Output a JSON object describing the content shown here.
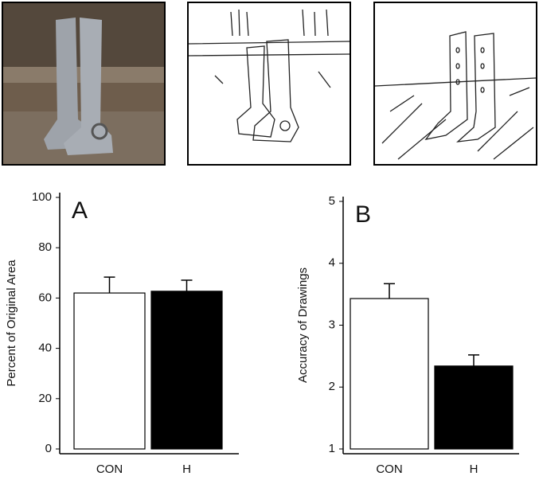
{
  "chart_data": [
    {
      "type": "bar",
      "panel_label": "A",
      "ylabel": "Percent of Original Area",
      "categories": [
        "CON",
        "H"
      ],
      "values": [
        62,
        62.7
      ],
      "errors": [
        6.3,
        4.4
      ],
      "colors": [
        "#ffffff",
        "#000000"
      ],
      "ylim": [
        0,
        100
      ],
      "yticks": [
        0,
        20,
        40,
        60,
        80,
        100
      ]
    },
    {
      "type": "bar",
      "panel_label": "B",
      "ylabel": "Accuracy of Drawings",
      "categories": [
        "CON",
        "H"
      ],
      "values": [
        3.43,
        2.34
      ],
      "errors": [
        0.24,
        0.18
      ],
      "colors": [
        "#ffffff",
        "#000000"
      ],
      "ylim": [
        1,
        5
      ],
      "yticks": [
        1,
        2,
        3,
        4,
        5
      ]
    }
  ]
}
